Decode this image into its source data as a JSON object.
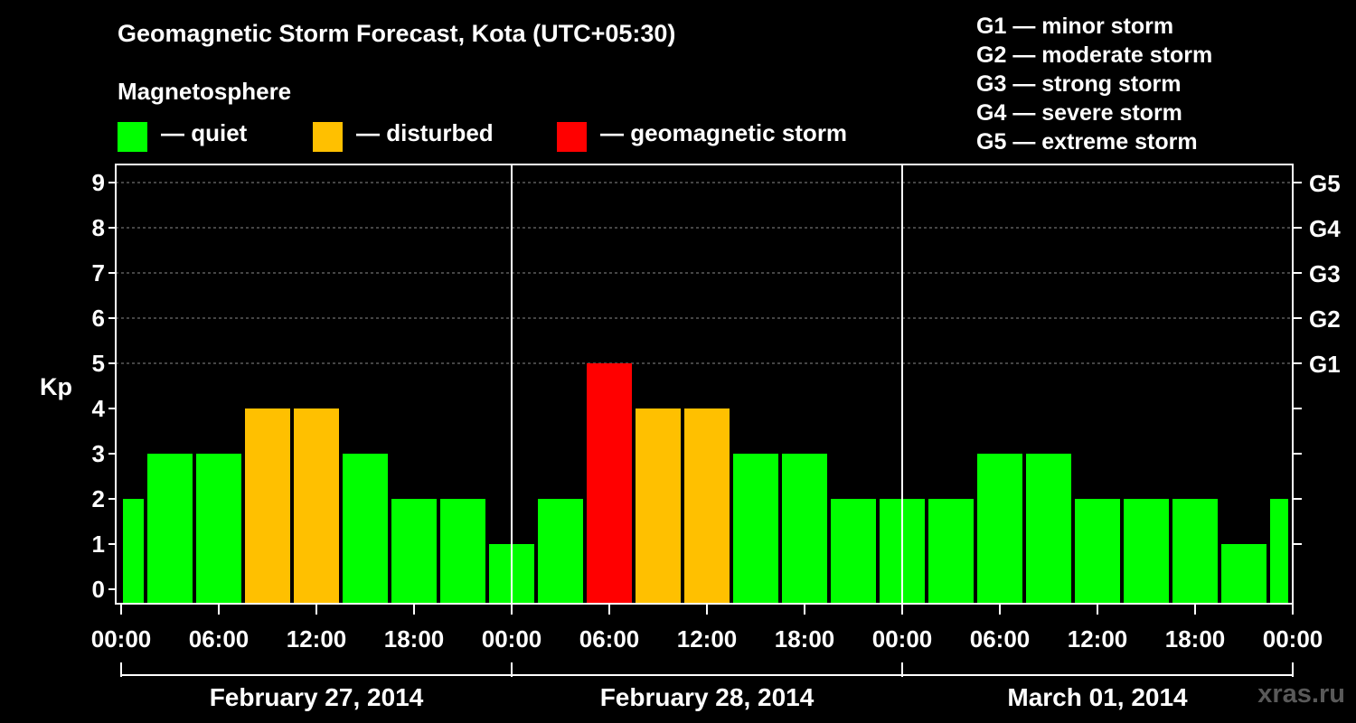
{
  "title": "Geomagnetic Storm Forecast, Kota (UTC+05:30)",
  "legend": {
    "heading": "Magnetosphere",
    "items": [
      {
        "label": "— quiet",
        "color": "#00ff00"
      },
      {
        "label": "— disturbed",
        "color": "#ffc000"
      },
      {
        "label": "— geomagnetic storm",
        "color": "#ff0000"
      }
    ]
  },
  "storm_scale": [
    {
      "level": "G1",
      "desc": "— minor storm"
    },
    {
      "level": "G2",
      "desc": "— moderate storm"
    },
    {
      "level": "G3",
      "desc": "— strong storm"
    },
    {
      "level": "G4",
      "desc": "— severe storm"
    },
    {
      "level": "G5",
      "desc": "— extreme storm"
    }
  ],
  "watermark": "xras.ru",
  "chart_data": {
    "type": "bar",
    "title": "Geomagnetic Storm Forecast, Kota (UTC+05:30)",
    "ylabel": "Kp",
    "ylim": [
      0,
      9
    ],
    "yticks": [
      "0",
      "1",
      "2",
      "3",
      "4",
      "5",
      "6",
      "7",
      "8",
      "9"
    ],
    "right_ticks": [
      {
        "kp": 5,
        "label": "G1"
      },
      {
        "kp": 6,
        "label": "G2"
      },
      {
        "kp": 7,
        "label": "G3"
      },
      {
        "kp": 8,
        "label": "G4"
      },
      {
        "kp": 9,
        "label": "G5"
      }
    ],
    "grid": true,
    "time_span_hours": 72,
    "xtick_labels": [
      "00:00",
      "06:00",
      "12:00",
      "18:00",
      "00:00",
      "06:00",
      "12:00",
      "18:00",
      "00:00",
      "06:00",
      "12:00",
      "18:00",
      "00:00"
    ],
    "dates": [
      "February 27, 2014",
      "February 28, 2014",
      "March 01, 2014"
    ],
    "bars": [
      {
        "start": 0,
        "end": 1.5,
        "kp": 2,
        "status": "quiet"
      },
      {
        "start": 1.5,
        "end": 4.5,
        "kp": 3,
        "status": "quiet"
      },
      {
        "start": 4.5,
        "end": 7.5,
        "kp": 3,
        "status": "quiet"
      },
      {
        "start": 7.5,
        "end": 10.5,
        "kp": 4,
        "status": "disturbed"
      },
      {
        "start": 10.5,
        "end": 13.5,
        "kp": 4,
        "status": "disturbed"
      },
      {
        "start": 13.5,
        "end": 16.5,
        "kp": 3,
        "status": "quiet"
      },
      {
        "start": 16.5,
        "end": 19.5,
        "kp": 2,
        "status": "quiet"
      },
      {
        "start": 19.5,
        "end": 22.5,
        "kp": 2,
        "status": "quiet"
      },
      {
        "start": 22.5,
        "end": 25.5,
        "kp": 1,
        "status": "quiet"
      },
      {
        "start": 25.5,
        "end": 28.5,
        "kp": 2,
        "status": "quiet"
      },
      {
        "start": 28.5,
        "end": 31.5,
        "kp": 5,
        "status": "storm"
      },
      {
        "start": 31.5,
        "end": 34.5,
        "kp": 4,
        "status": "disturbed"
      },
      {
        "start": 34.5,
        "end": 37.5,
        "kp": 4,
        "status": "disturbed"
      },
      {
        "start": 37.5,
        "end": 40.5,
        "kp": 3,
        "status": "quiet"
      },
      {
        "start": 40.5,
        "end": 43.5,
        "kp": 3,
        "status": "quiet"
      },
      {
        "start": 43.5,
        "end": 46.5,
        "kp": 2,
        "status": "quiet"
      },
      {
        "start": 46.5,
        "end": 49.5,
        "kp": 2,
        "status": "quiet"
      },
      {
        "start": 49.5,
        "end": 52.5,
        "kp": 2,
        "status": "quiet"
      },
      {
        "start": 52.5,
        "end": 55.5,
        "kp": 3,
        "status": "quiet"
      },
      {
        "start": 55.5,
        "end": 58.5,
        "kp": 3,
        "status": "quiet"
      },
      {
        "start": 58.5,
        "end": 61.5,
        "kp": 2,
        "status": "quiet"
      },
      {
        "start": 61.5,
        "end": 64.5,
        "kp": 2,
        "status": "quiet"
      },
      {
        "start": 64.5,
        "end": 67.5,
        "kp": 2,
        "status": "quiet"
      },
      {
        "start": 67.5,
        "end": 70.5,
        "kp": 1,
        "status": "quiet"
      },
      {
        "start": 70.5,
        "end": 72,
        "kp": 2,
        "status": "quiet"
      }
    ],
    "colors": {
      "quiet": "#00ff00",
      "disturbed": "#ffc000",
      "storm": "#ff0000"
    }
  }
}
